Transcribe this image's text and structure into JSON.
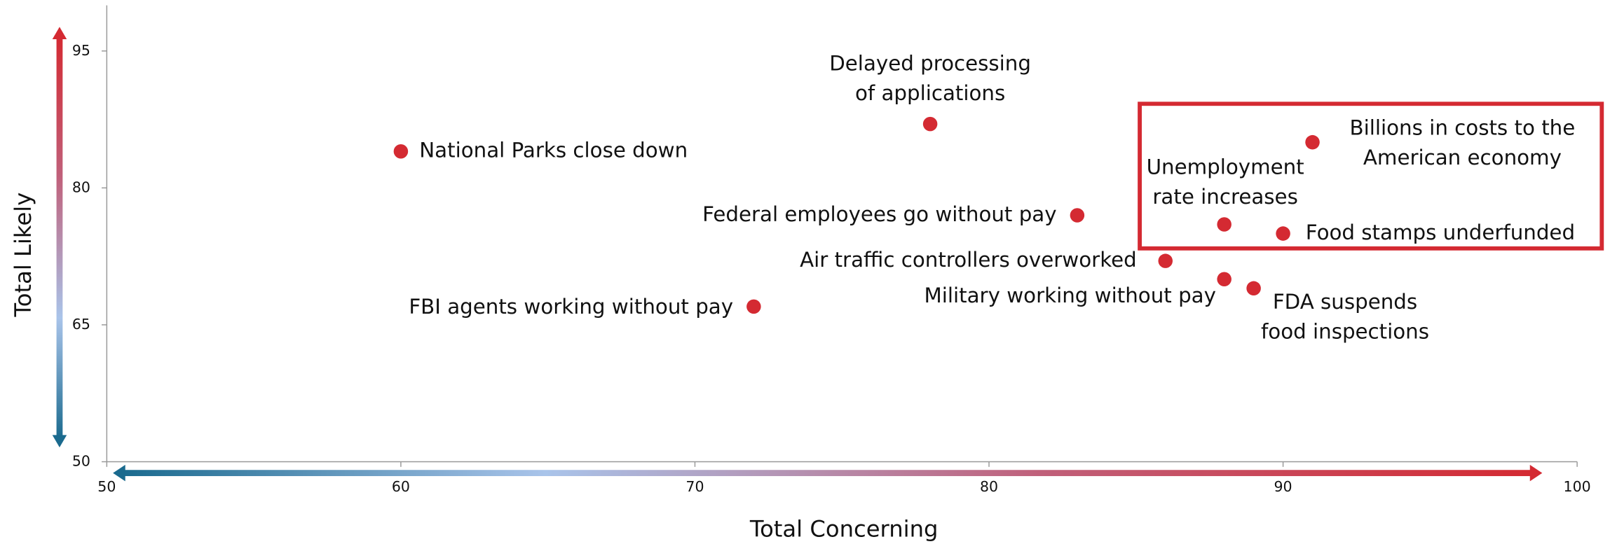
{
  "chart_data": {
    "type": "scatter",
    "x_label": "Total Concerning",
    "y_label": "Total Likely",
    "xlim": [
      50,
      100
    ],
    "ylim": [
      50,
      100
    ],
    "xticks": [
      50,
      60,
      70,
      80,
      90,
      100
    ],
    "yticks": [
      50,
      65,
      80,
      95
    ],
    "color": "#d42a32",
    "x": [
      60,
      78,
      91,
      88,
      90,
      83,
      86,
      88,
      89,
      72
    ],
    "values": [
      84,
      87,
      85,
      76,
      75,
      77,
      72,
      70,
      69,
      67
    ],
    "labels": [
      [
        "National Parks close down"
      ],
      [
        "Delayed processing",
        "of applications"
      ],
      [
        "Billions in costs to the",
        "American economy"
      ],
      [
        "Unemployment",
        "rate increases"
      ],
      [
        "Food stamps underfunded"
      ],
      [
        "Federal employees go without pay"
      ],
      [
        "Air traffic controllers overworked"
      ],
      [
        "Military working without pay"
      ],
      [
        "FDA suspends",
        "food inspections"
      ],
      [
        "FBI agents working without pay"
      ]
    ]
  }
}
